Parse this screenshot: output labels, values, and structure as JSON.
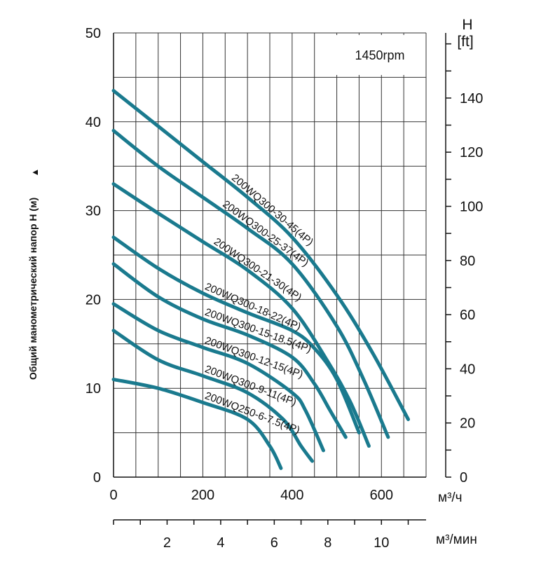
{
  "chart_data": {
    "type": "line",
    "ylabel": "Общий манометрический напор H (м)",
    "ylabel_arrow": "▲",
    "ylim": [
      0,
      50
    ],
    "y_ticks": [
      0,
      10,
      20,
      30,
      40,
      50
    ],
    "y_tick_labels": [
      "0",
      "10",
      "20",
      "30",
      "40",
      "50"
    ],
    "xlim": [
      0,
      700
    ],
    "x_ticks": [
      0,
      200,
      400,
      600
    ],
    "x_tick_labels": [
      "0",
      "200",
      "400",
      "600"
    ],
    "x_unit": "м³/ч",
    "x2_ticks": [
      2,
      4,
      6,
      8,
      10
    ],
    "x2_tick_labels": [
      "2",
      "4",
      "6",
      "8",
      "10"
    ],
    "x2_unit": "м³/мин",
    "y2_title_1": "H",
    "y2_title_2": "[ft]",
    "y2_ticks": [
      0,
      20,
      40,
      60,
      80,
      100,
      120,
      140
    ],
    "y2_tick_labels": [
      "0",
      "20",
      "40",
      "60",
      "80",
      "100",
      "120",
      "140"
    ],
    "annotation": "1450rpm",
    "grid": true,
    "line_color": "#1a7a8e",
    "series": [
      {
        "name": "200WQ300-30-45(4P)",
        "x": [
          0,
          100,
          200,
          300,
          400,
          500,
          580,
          660
        ],
        "y": [
          43.5,
          39.5,
          35.5,
          31.5,
          27,
          20.5,
          14,
          6.5
        ]
      },
      {
        "name": "200WQ300-25-37(4P)",
        "x": [
          0,
          100,
          200,
          300,
          400,
          500,
          560,
          615
        ],
        "y": [
          39,
          35,
          31.5,
          28,
          24,
          17,
          11,
          4.5
        ]
      },
      {
        "name": "200WQ300-21-30(4P)",
        "x": [
          0,
          100,
          200,
          300,
          400,
          480,
          530,
          572
        ],
        "y": [
          33,
          29.7,
          26.5,
          23.3,
          19,
          13,
          8.5,
          3.5
        ]
      },
      {
        "name": "200WQ300-18-22(4P)",
        "x": [
          0,
          100,
          200,
          300,
          400,
          450,
          500,
          550
        ],
        "y": [
          27,
          23.5,
          20.7,
          18.5,
          16.5,
          14.5,
          11,
          5
        ]
      },
      {
        "name": "200WQ300-15-18.5(4P)",
        "x": [
          0,
          100,
          200,
          300,
          400,
          450,
          485,
          520
        ],
        "y": [
          24,
          20.3,
          17.8,
          16,
          13.5,
          10.5,
          7.5,
          4.5
        ]
      },
      {
        "name": "200WQ300-12-15(4P)",
        "x": [
          0,
          100,
          200,
          300,
          400,
          430,
          470
        ],
        "y": [
          19.5,
          16.5,
          14.6,
          12.8,
          9.5,
          7.5,
          3
        ]
      },
      {
        "name": "200WQ300-9-11(4P)",
        "x": [
          0,
          100,
          200,
          300,
          380,
          420,
          445
        ],
        "y": [
          16.5,
          13.2,
          11.4,
          9.5,
          6.5,
          3.5,
          1.8
        ]
      },
      {
        "name": "200WQ250-6-7.5(4P)",
        "x": [
          0,
          100,
          200,
          300,
          350,
          375
        ],
        "y": [
          11,
          10,
          8.4,
          6.5,
          3.5,
          1
        ]
      }
    ]
  }
}
